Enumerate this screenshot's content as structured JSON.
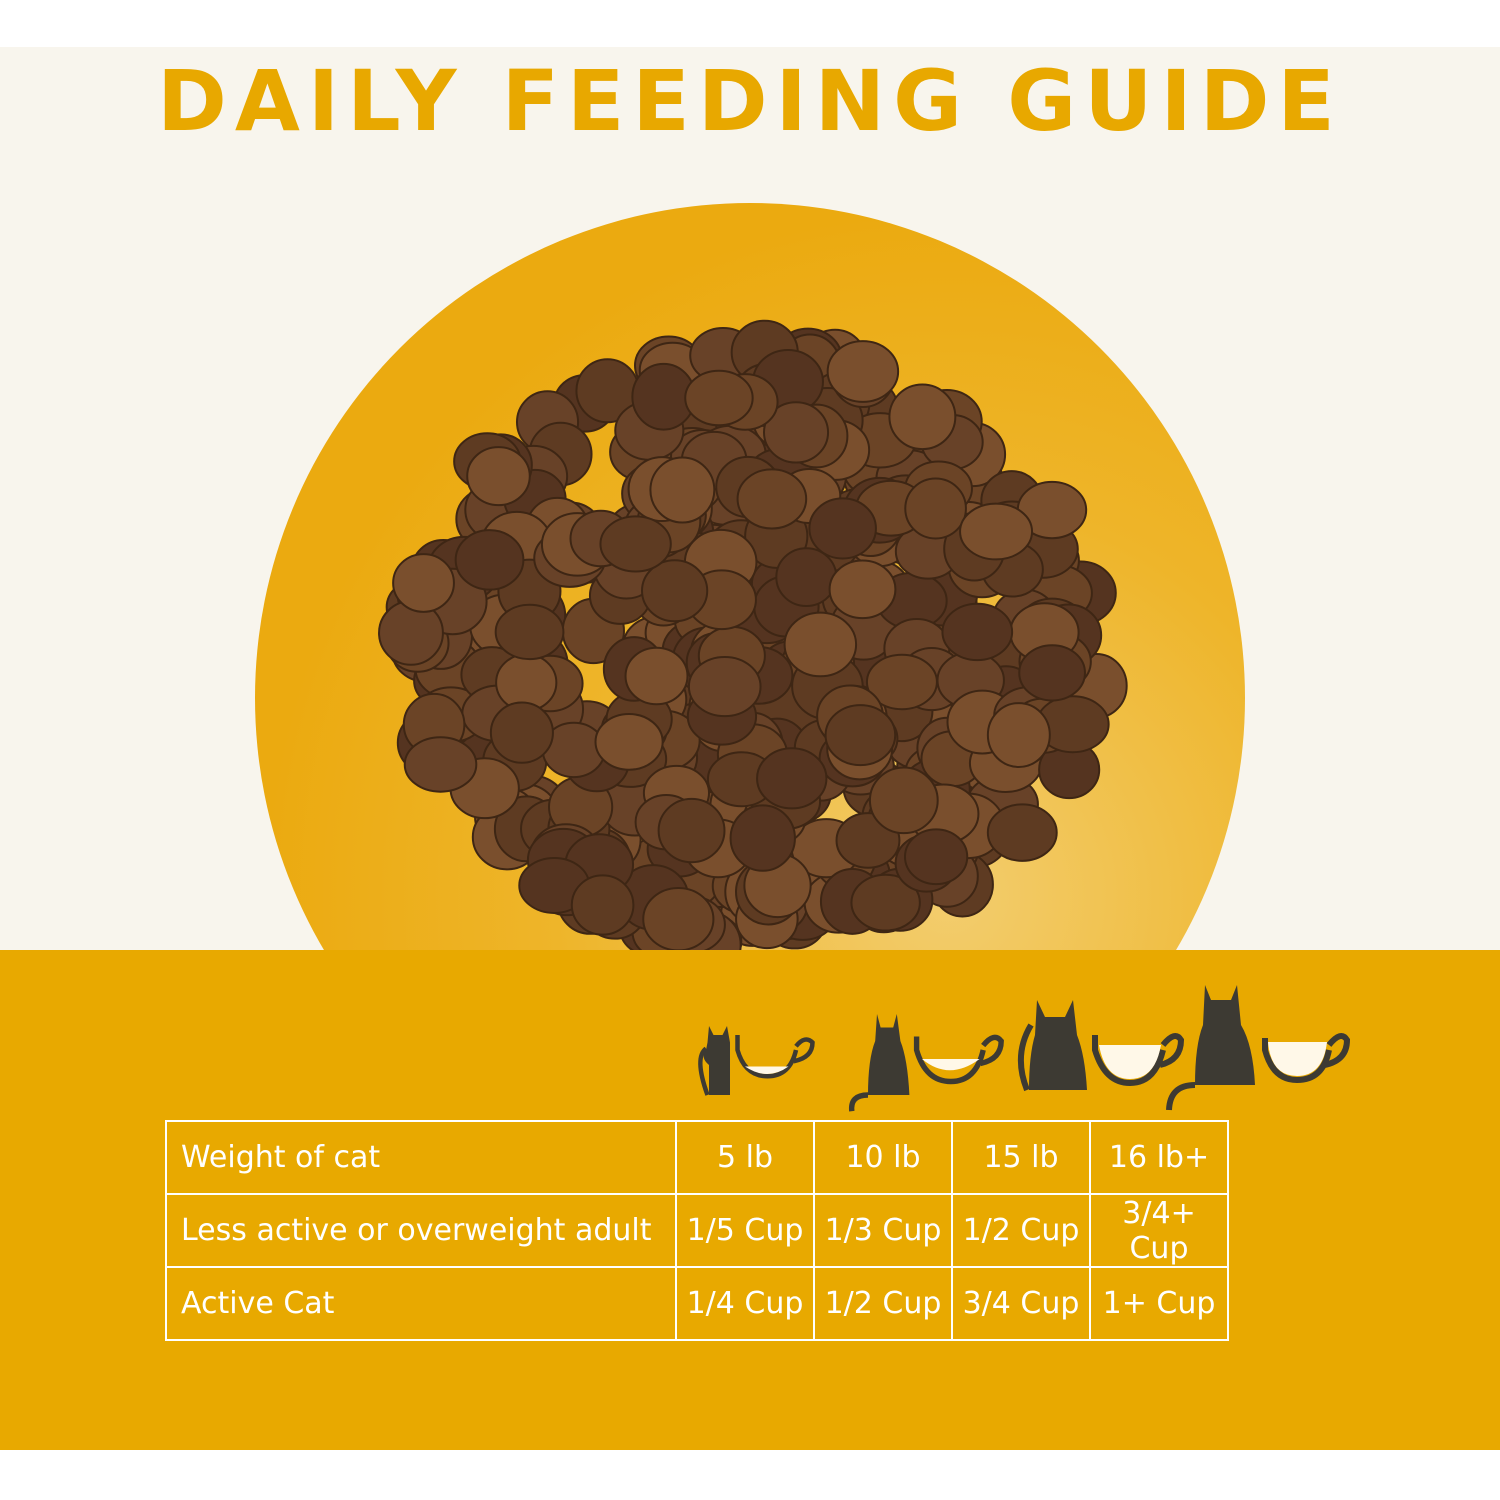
{
  "title": "DAILY FEEDING GUIDE",
  "colors": {
    "accent": "#e8a900",
    "cream": "#f8f5ed",
    "kibble": "#6b4426",
    "cat": "#3d3a33"
  },
  "icons": [
    "cat-cup-5lb-icon",
    "cat-cup-10lb-icon",
    "cat-cup-15lb-icon",
    "cat-cup-16lb-icon"
  ],
  "table": {
    "rows": [
      {
        "label": "Weight of cat",
        "values": [
          "5 lb",
          "10 lb",
          "15 lb",
          "16 lb+"
        ]
      },
      {
        "label": "Less active or overweight adult",
        "values": [
          "1/5 Cup",
          "1/3 Cup",
          "1/2 Cup",
          "3/4+ Cup"
        ]
      },
      {
        "label": "Active Cat",
        "values": [
          "1/4 Cup",
          "1/2 Cup",
          "3/4 Cup",
          "1+ Cup"
        ]
      }
    ]
  }
}
